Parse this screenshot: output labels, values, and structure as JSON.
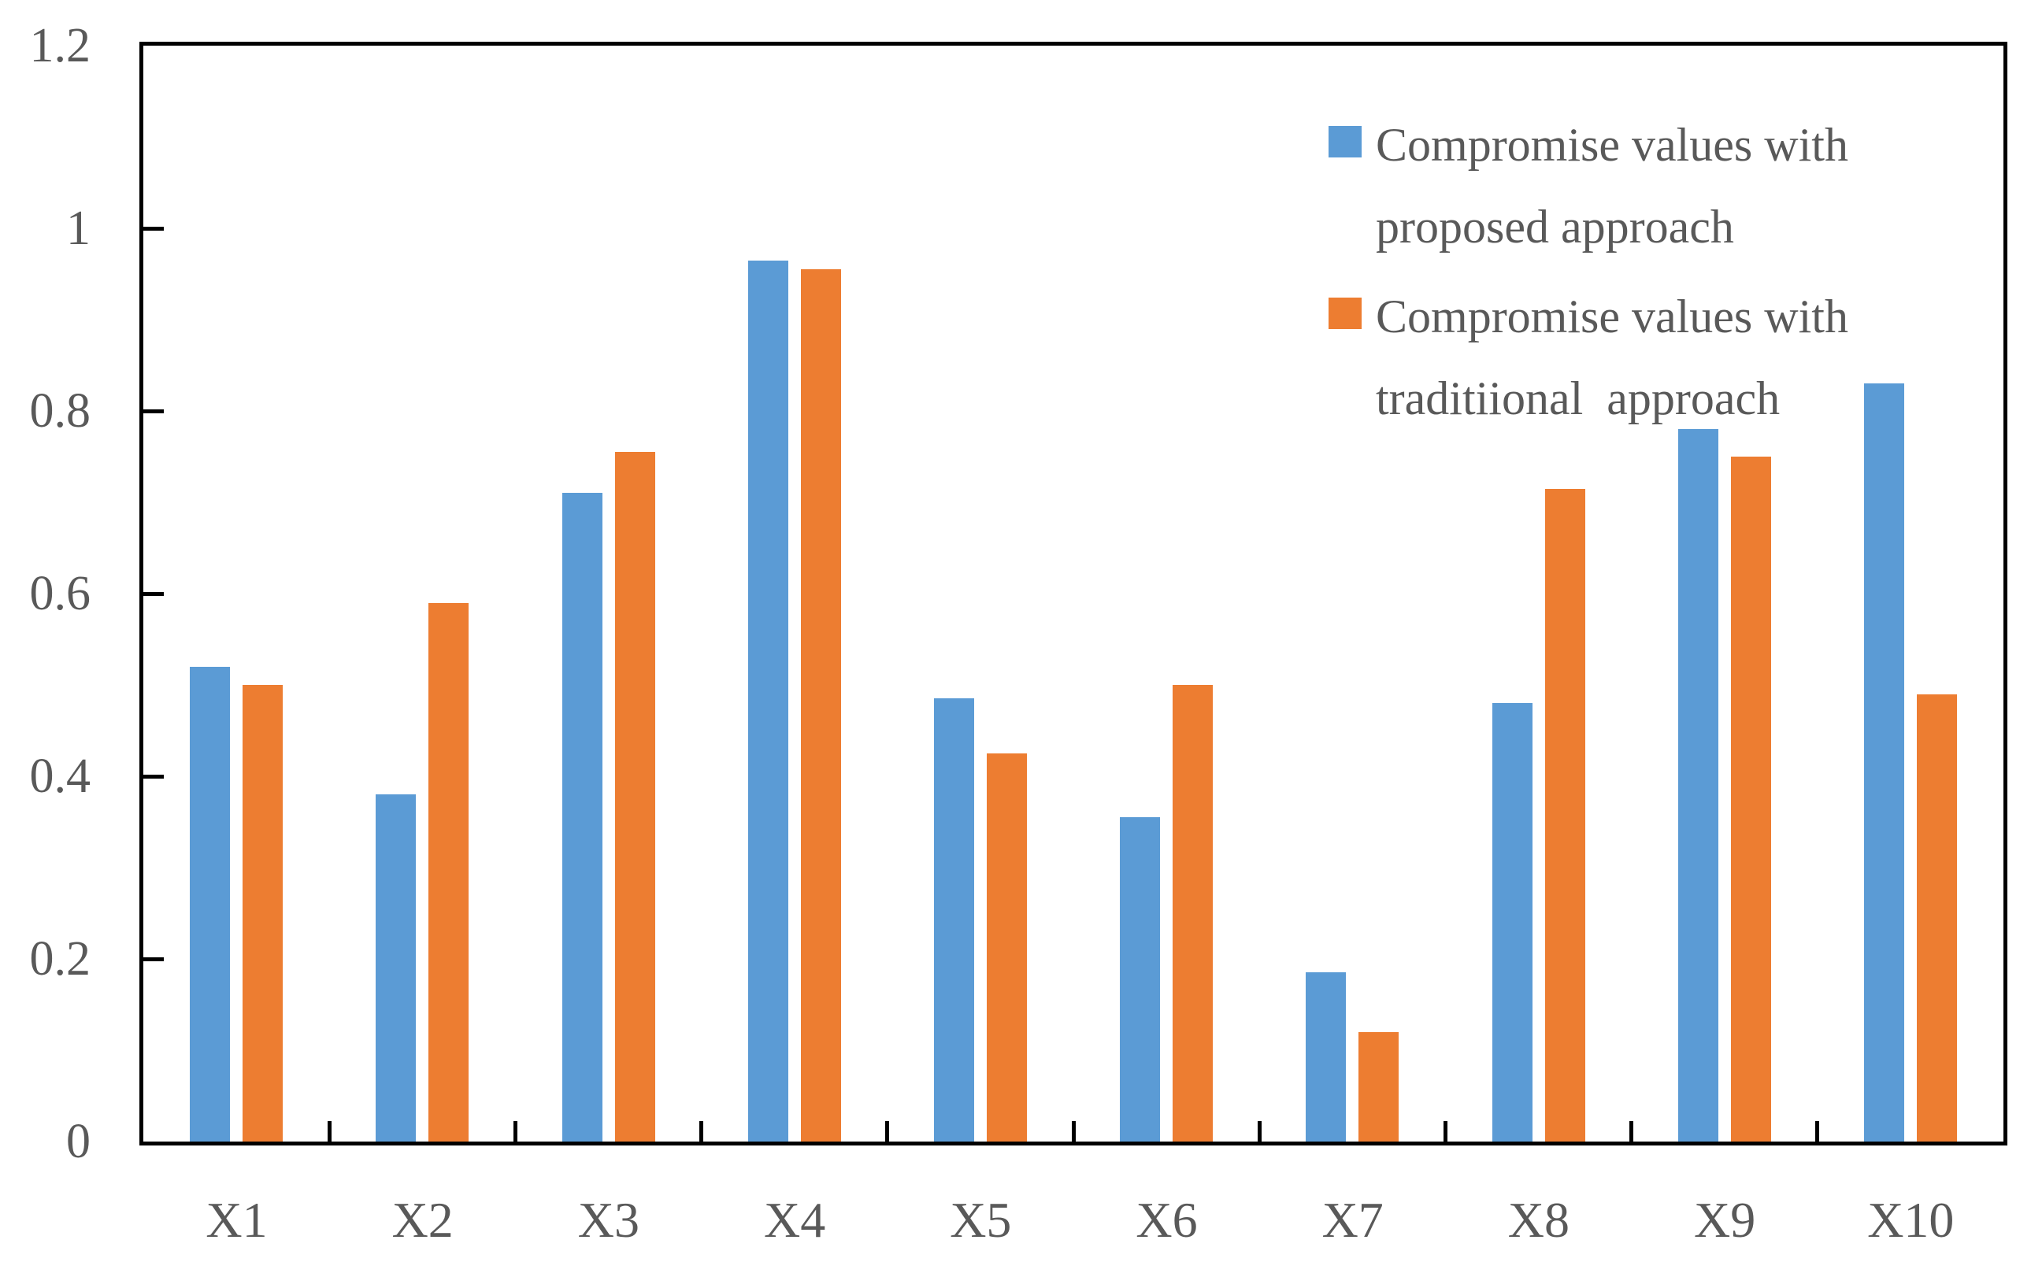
{
  "figure": {
    "background": "#FFFFFF"
  },
  "chart_data": {
    "type": "bar",
    "title": "",
    "xlabel": "",
    "ylabel": "",
    "categories": [
      "X1",
      "X2",
      "X3",
      "X4",
      "X5",
      "X6",
      "X7",
      "X8",
      "X9",
      "X10"
    ],
    "series": [
      {
        "name": "Compromise values with proposed approach",
        "color": "#5B9BD5",
        "values": [
          0.52,
          0.38,
          0.71,
          0.965,
          0.485,
          0.355,
          0.185,
          0.48,
          0.78,
          0.83
        ]
      },
      {
        "name": "Compromise values with traditiional approach",
        "color": "#ED7D31",
        "values": [
          0.5,
          0.59,
          0.755,
          0.955,
          0.425,
          0.5,
          0.12,
          0.715,
          0.75,
          0.49
        ]
      }
    ],
    "ylim": [
      0,
      1.2
    ],
    "yticks": [
      0,
      0.2,
      0.4,
      0.6,
      0.8,
      1,
      1.2
    ],
    "ytick_labels": [
      "0",
      "0.2",
      "0.4",
      "0.6",
      "0.8",
      "1",
      "1.2"
    ],
    "grid": false,
    "tick_style": "inside",
    "legend_position": "top-right",
    "legend": [
      {
        "label": "Compromise values with\nproposed approach",
        "color": "#5B9BD5"
      },
      {
        "label": "Compromise values with\ntraditiional  approach",
        "color": "#ED7D31"
      }
    ],
    "axis_color": "#000000",
    "label_color": "#595959"
  }
}
